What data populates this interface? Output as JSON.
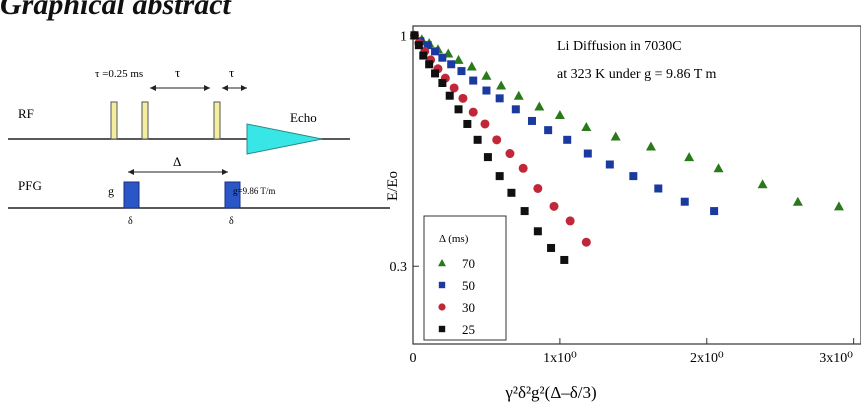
{
  "heading": "Graphical abstract",
  "pulse_sequence": {
    "rf_label": "RF",
    "pfg_label": "PFG",
    "echo_label": "Echo",
    "tau_label": "τ",
    "tau_025_label": "τ =0.25 ms",
    "delta_cap_label": "Δ",
    "g_label": "g",
    "g_value_label": "g=9.86 T/m",
    "small_delta_label": "δ",
    "colors": {
      "rf_pulse": "#f4ee9e",
      "gradient_pulse": "#2b56c8",
      "echo": "#38e6e6"
    }
  },
  "chart_data": {
    "type": "scatter",
    "log_y": true,
    "annotation_line1": "Li Diffusion in 7030C",
    "annotation_line2": "at 323 K under g = 9.86 T m",
    "ylabel": "E/Eo",
    "xlabel": "γ²δ²g²(Δ–δ/3)",
    "xlim": [
      0,
      3.05
    ],
    "ylim": [
      0.2,
      1.05
    ],
    "x_ticks": [
      {
        "value": 0,
        "label": "0"
      },
      {
        "value": 1,
        "label": "1x10⁰"
      },
      {
        "value": 2,
        "label": "2x10⁰"
      },
      {
        "value": 3,
        "label": "3x10⁰"
      }
    ],
    "y_ticks": [
      {
        "value": 1,
        "label": "1"
      },
      {
        "value": 0.3,
        "label": "0.3"
      }
    ],
    "legend_title": "Δ (ms)",
    "legend_position": "bottom-left",
    "grid": false,
    "series": [
      {
        "name": "70",
        "marker": "triangle",
        "color": "#2a7a1c",
        "x": [
          0.01,
          0.06,
          0.11,
          0.17,
          0.24,
          0.31,
          0.4,
          0.5,
          0.6,
          0.72,
          0.86,
          1.0,
          1.18,
          1.38,
          1.62,
          1.88,
          2.08,
          2.38,
          2.62,
          2.9
        ],
        "y": [
          1.0,
          0.98,
          0.96,
          0.93,
          0.91,
          0.88,
          0.85,
          0.81,
          0.77,
          0.73,
          0.69,
          0.66,
          0.62,
          0.59,
          0.56,
          0.53,
          0.5,
          0.46,
          0.42,
          0.41
        ]
      },
      {
        "name": "50",
        "marker": "square",
        "color": "#1b3aa0",
        "x": [
          0.01,
          0.05,
          0.1,
          0.15,
          0.2,
          0.26,
          0.33,
          0.41,
          0.5,
          0.59,
          0.7,
          0.81,
          0.92,
          1.05,
          1.19,
          1.34,
          1.5,
          1.67,
          1.85,
          2.05
        ],
        "y": [
          1.0,
          0.97,
          0.95,
          0.92,
          0.89,
          0.86,
          0.83,
          0.79,
          0.75,
          0.72,
          0.68,
          0.64,
          0.61,
          0.58,
          0.54,
          0.51,
          0.48,
          0.45,
          0.42,
          0.4
        ]
      },
      {
        "name": "30",
        "marker": "circle",
        "color": "#c0283a",
        "x": [
          0.01,
          0.04,
          0.08,
          0.12,
          0.17,
          0.22,
          0.28,
          0.34,
          0.41,
          0.49,
          0.57,
          0.66,
          0.75,
          0.85,
          0.96,
          1.07,
          1.18
        ],
        "y": [
          1.0,
          0.96,
          0.92,
          0.88,
          0.84,
          0.8,
          0.76,
          0.72,
          0.67,
          0.63,
          0.58,
          0.54,
          0.5,
          0.45,
          0.41,
          0.38,
          0.34
        ]
      },
      {
        "name": "25",
        "marker": "square",
        "color": "#101010",
        "x": [
          0.01,
          0.04,
          0.07,
          0.11,
          0.15,
          0.2,
          0.25,
          0.31,
          0.37,
          0.44,
          0.51,
          0.59,
          0.67,
          0.76,
          0.85,
          0.94,
          1.03
        ],
        "y": [
          1.0,
          0.95,
          0.9,
          0.86,
          0.82,
          0.78,
          0.73,
          0.68,
          0.63,
          0.58,
          0.53,
          0.48,
          0.44,
          0.4,
          0.36,
          0.33,
          0.31
        ]
      }
    ]
  }
}
